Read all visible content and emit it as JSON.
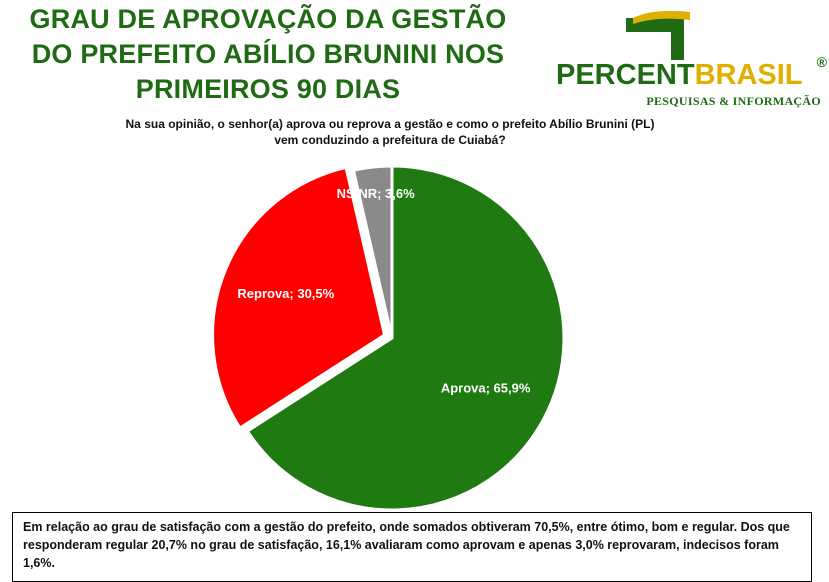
{
  "title": {
    "line1": "GRAU DE APROVAÇÃO DA GESTÃO",
    "line2": "DO PREFEITO ABÍLIO BRUNINI NOS",
    "line3": "PRIMEIROS 90 DIAS"
  },
  "logo": {
    "word_part1": "PERCENT",
    "word_part2": "BRASIL",
    "registered": "®",
    "subtitle": "PESQUISAS & INFORMAÇÃO"
  },
  "question": {
    "line1": "Na sua opinião, o senhor(a) aprova ou reprova a gestão e como o prefeito Abílio Brunini (PL)",
    "line2": "vem conduzindo a prefeitura de Cuiabá?"
  },
  "chart_data": {
    "type": "pie",
    "slices": [
      {
        "label": "Aprova",
        "value": 65.9,
        "display": "Aprova; 65,9%",
        "color": "#1f7a12"
      },
      {
        "label": "Reprova",
        "value": 30.5,
        "display": "Reprova; 30,5%",
        "color": "#ff0000"
      },
      {
        "label": "NS/NR",
        "value": 3.6,
        "display": "NS/NR; 3,6%",
        "color": "#8a8a8a"
      }
    ],
    "exploded": "Reprova"
  },
  "footer": {
    "text": "Em relação ao grau de satisfação com a gestão do prefeito, onde somados obtiveram 70,5%, entre ótimo, bom e regular. Dos que responderam regular 20,7% no grau de satisfação, 16,1% avaliaram como aprovam  e apenas 3,0% reprovaram, indecisos foram 1,6%."
  }
}
